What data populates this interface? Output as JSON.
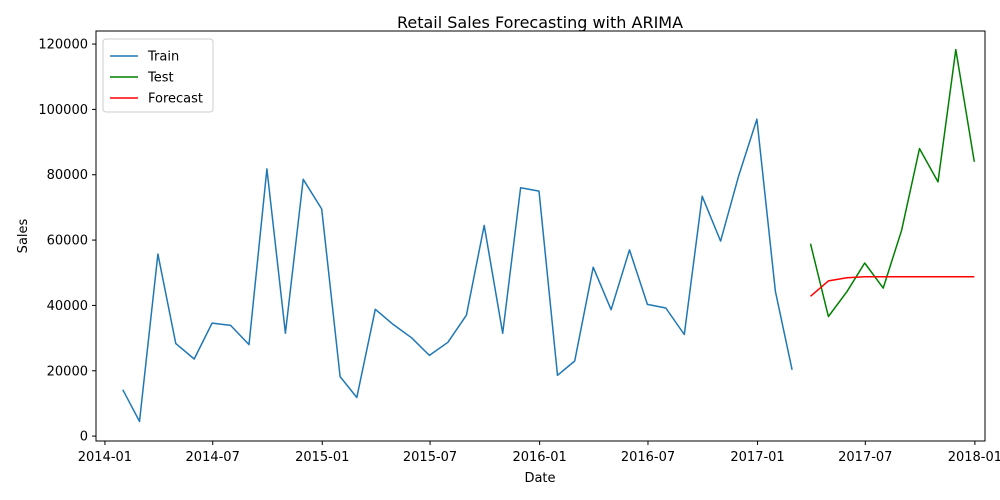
{
  "chart_data": {
    "type": "line",
    "title": "Retail Sales Forecasting with ARIMA",
    "xlabel": "Date",
    "ylabel": "Sales",
    "xlim": [
      "2013-12-17",
      "2018-01-18"
    ],
    "ylim": [
      -1500,
      124000
    ],
    "xticks": [
      "2014-01",
      "2014-07",
      "2015-01",
      "2015-07",
      "2016-01",
      "2016-07",
      "2017-01",
      "2017-07",
      "2018-01"
    ],
    "xtick_dates": [
      "2014-01-01",
      "2014-07-01",
      "2015-01-01",
      "2015-07-01",
      "2016-01-01",
      "2016-07-01",
      "2017-01-01",
      "2017-07-01",
      "2018-01-01"
    ],
    "yticks": [
      "0",
      "20000",
      "40000",
      "60000",
      "80000",
      "100000",
      "120000"
    ],
    "ytick_values": [
      0,
      20000,
      40000,
      60000,
      80000,
      100000,
      120000
    ],
    "grid": false,
    "legend_position": "top-left",
    "series": [
      {
        "name": "Train",
        "color": "#1f77b4",
        "x": [
          "2014-01-31",
          "2014-02-28",
          "2014-03-31",
          "2014-04-30",
          "2014-05-31",
          "2014-06-30",
          "2014-07-31",
          "2014-08-31",
          "2014-09-30",
          "2014-10-31",
          "2014-11-30",
          "2014-12-31",
          "2015-01-31",
          "2015-02-28",
          "2015-03-31",
          "2015-04-30",
          "2015-05-31",
          "2015-06-30",
          "2015-07-31",
          "2015-08-31",
          "2015-09-30",
          "2015-10-31",
          "2015-11-30",
          "2015-12-31",
          "2016-01-31",
          "2016-02-29",
          "2016-03-31",
          "2016-04-30",
          "2016-05-31",
          "2016-06-30",
          "2016-07-31",
          "2016-08-31",
          "2016-09-30",
          "2016-10-31",
          "2016-11-30",
          "2016-12-31",
          "2017-01-31",
          "2017-02-28"
        ],
        "y": [
          14200,
          4500,
          55700,
          28300,
          23600,
          34600,
          33900,
          28000,
          81800,
          31500,
          78600,
          69500,
          18200,
          11800,
          38800,
          34200,
          30100,
          24700,
          28700,
          37000,
          64500,
          31500,
          76000,
          75000,
          18600,
          23000,
          51700,
          38700,
          57000,
          40300,
          39200,
          31100,
          73400,
          59700,
          79500,
          97000,
          44300,
          20300
        ]
      },
      {
        "name": "Test",
        "color": "#008000",
        "x": [
          "2017-03-31",
          "2017-04-30",
          "2017-05-31",
          "2017-06-30",
          "2017-07-31",
          "2017-08-31",
          "2017-09-30",
          "2017-10-31",
          "2017-11-30",
          "2017-12-31"
        ],
        "y": [
          58900,
          36600,
          44200,
          53000,
          45300,
          63000,
          88000,
          77800,
          118300,
          84000
        ]
      },
      {
        "name": "Forecast",
        "color": "#ff0000",
        "x": [
          "2017-03-31",
          "2017-04-30",
          "2017-05-31",
          "2017-06-30",
          "2017-07-31",
          "2017-08-31",
          "2017-09-30",
          "2017-10-31",
          "2017-11-30",
          "2017-12-31"
        ],
        "y": [
          42800,
          47500,
          48500,
          48800,
          48800,
          48800,
          48800,
          48800,
          48800,
          48800
        ]
      }
    ]
  }
}
